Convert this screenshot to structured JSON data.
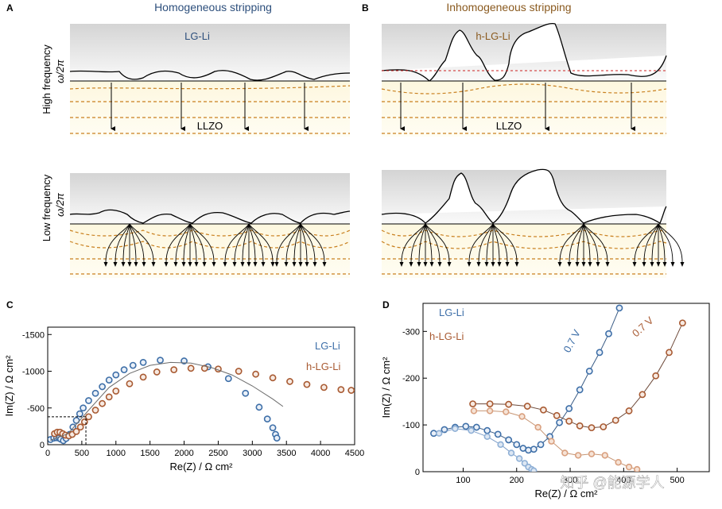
{
  "panels": {
    "a": {
      "letter": "A",
      "title": "Homogeneous stripping",
      "metal_label": "LG-Li",
      "electrolyte_label": "LLZO"
    },
    "b": {
      "letter": "B",
      "title": "Inhomogeneous stripping",
      "metal_label": "h-LG-Li",
      "electrolyte_label": "LLZO"
    },
    "row_labels": {
      "high": "High frequency",
      "low": "Low frequency",
      "omega": "ω/2π"
    },
    "c": {
      "letter": "C"
    },
    "d": {
      "letter": "D"
    }
  },
  "colors": {
    "lg_li": "#3e6fa8",
    "h_lg_li": "#a85a32",
    "h_lg_li_light": "#d9a07f",
    "lg_li_light": "#8fb0d6",
    "dashed_orange": "#c9801f",
    "red_dash": "#cc2222",
    "fit_line": "#6b6b6b",
    "title_blue": "#2d4f7c",
    "title_brown": "#8a5a1f"
  },
  "watermark": "知乎 @能源学人",
  "chart_data": [
    {
      "id": "C",
      "type": "scatter",
      "xlabel": "Re(Z) / Ω cm²",
      "ylabel": "Im(Z) / Ω cm²",
      "xlim": [
        0,
        4500
      ],
      "ylim": [
        0,
        -1600
      ],
      "xticks": [
        0,
        500,
        1000,
        1500,
        2000,
        2500,
        3000,
        3500,
        4000,
        4500
      ],
      "yticks": [
        0,
        -500,
        -1000,
        -1500
      ],
      "legend": [
        "LG-Li",
        "h-LG-Li"
      ],
      "series": [
        {
          "name": "LG-Li",
          "x": [
            40,
            90,
            130,
            165,
            190,
            230,
            270,
            320,
            370,
            420,
            470,
            520,
            600,
            700,
            800,
            900,
            1000,
            1120,
            1250,
            1400,
            1650,
            2000,
            2350,
            2650,
            2900,
            3100,
            3220,
            3300,
            3340,
            3360
          ],
          "y": [
            -70,
            -90,
            -95,
            -90,
            -75,
            -55,
            -85,
            -140,
            -240,
            -330,
            -420,
            -500,
            -600,
            -700,
            -790,
            -880,
            -950,
            -1020,
            -1080,
            -1120,
            -1150,
            -1140,
            -1060,
            -900,
            -700,
            -510,
            -350,
            -230,
            -140,
            -90
          ]
        },
        {
          "name": "h-LG-Li",
          "x": [
            100,
            140,
            180,
            220,
            260,
            310,
            360,
            420,
            480,
            540,
            600,
            700,
            800,
            900,
            1000,
            1200,
            1400,
            1600,
            1850,
            2100,
            2300,
            2500,
            2800,
            3050,
            3300,
            3550,
            3800,
            4050,
            4300,
            4450
          ],
          "y": [
            -150,
            -170,
            -170,
            -150,
            -130,
            -120,
            -140,
            -180,
            -240,
            -310,
            -380,
            -470,
            -560,
            -650,
            -730,
            -830,
            -920,
            -990,
            -1020,
            -1040,
            -1040,
            -1030,
            -1000,
            -960,
            -910,
            -860,
            -820,
            -780,
            -750,
            -740
          ]
        },
        {
          "name": "fit",
          "x": [
            40,
            300,
            600,
            900,
            1200,
            1500,
            1800,
            2100,
            2400,
            2700,
            3000,
            3300,
            3450
          ],
          "y": [
            -60,
            -150,
            -470,
            -780,
            -970,
            -1080,
            -1120,
            -1110,
            -1050,
            -950,
            -800,
            -620,
            -520
          ]
        }
      ]
    },
    {
      "id": "D",
      "type": "scatter",
      "xlabel": "Re(Z) / Ω cm²",
      "ylabel": "Im(Z) / Ω cm²",
      "xlim": [
        25,
        560
      ],
      "ylim": [
        0,
        -360
      ],
      "xticks": [
        100,
        200,
        300,
        400,
        500
      ],
      "yticks": [
        0,
        -100,
        -200,
        -300
      ],
      "legend": [
        "LG-Li",
        "h-LG-Li"
      ],
      "annotations": [
        "0.7 V",
        "0.7 V"
      ],
      "series": [
        {
          "name": "LG-Li",
          "x": [
            45,
            65,
            85,
            105,
            125,
            145,
            165,
            185,
            200,
            212,
            222,
            232,
            245,
            262,
            280,
            298,
            318,
            336,
            355,
            372,
            392
          ],
          "y": [
            -82,
            -90,
            -95,
            -97,
            -95,
            -88,
            -80,
            -68,
            -58,
            -50,
            -46,
            -48,
            -58,
            -75,
            -105,
            -135,
            -175,
            -215,
            -255,
            -295,
            -350
          ]
        },
        {
          "name": "LG-Li 0.7 V",
          "x": [
            55,
            85,
            115,
            145,
            170,
            190,
            205,
            215,
            222,
            228,
            232
          ],
          "y": [
            -82,
            -92,
            -88,
            -75,
            -58,
            -40,
            -28,
            -18,
            -10,
            -5,
            -2
          ]
        },
        {
          "name": "h-LG-Li",
          "x": [
            118,
            150,
            185,
            220,
            250,
            275,
            298,
            318,
            340,
            362,
            385,
            410,
            435,
            460,
            485,
            510
          ],
          "y": [
            -145,
            -145,
            -144,
            -140,
            -132,
            -120,
            -108,
            -98,
            -94,
            -96,
            -110,
            -130,
            -165,
            -205,
            -255,
            -318
          ]
        },
        {
          "name": "h-LG-Li 0.7 V",
          "x": [
            120,
            150,
            180,
            210,
            240,
            265,
            290,
            315,
            340,
            365,
            390,
            410,
            425
          ],
          "y": [
            -130,
            -130,
            -128,
            -118,
            -95,
            -65,
            -40,
            -35,
            -38,
            -35,
            -20,
            -10,
            -5
          ]
        }
      ]
    }
  ]
}
